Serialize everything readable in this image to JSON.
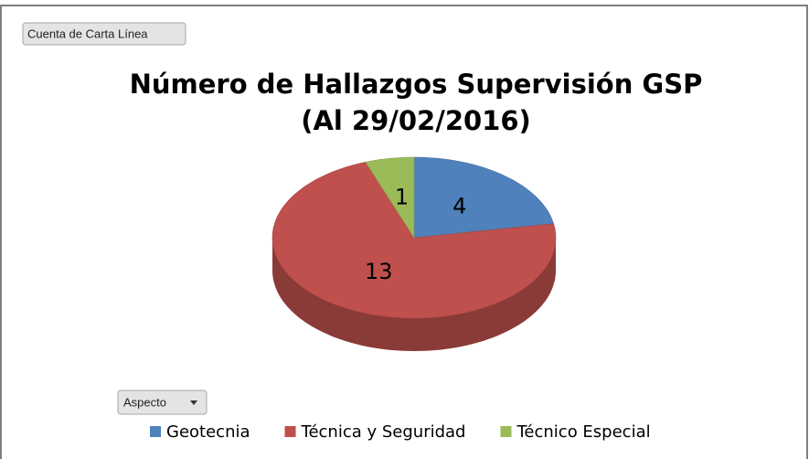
{
  "chart_data": {
    "type": "pie",
    "field_button": "Cuenta de Carta Línea",
    "title": "Número de Hallazgos Supervisión GSP",
    "subtitle": "(Al 29/02/2016)",
    "filter_button": "Aspecto",
    "categories": [
      "Geotecnia",
      "Técnica y Seguridad",
      "Técnico Especial"
    ],
    "values": [
      4,
      13,
      1
    ],
    "colors": [
      "#4f81bd",
      "#c0504d",
      "#9bbb59"
    ],
    "legend": "bottom"
  }
}
